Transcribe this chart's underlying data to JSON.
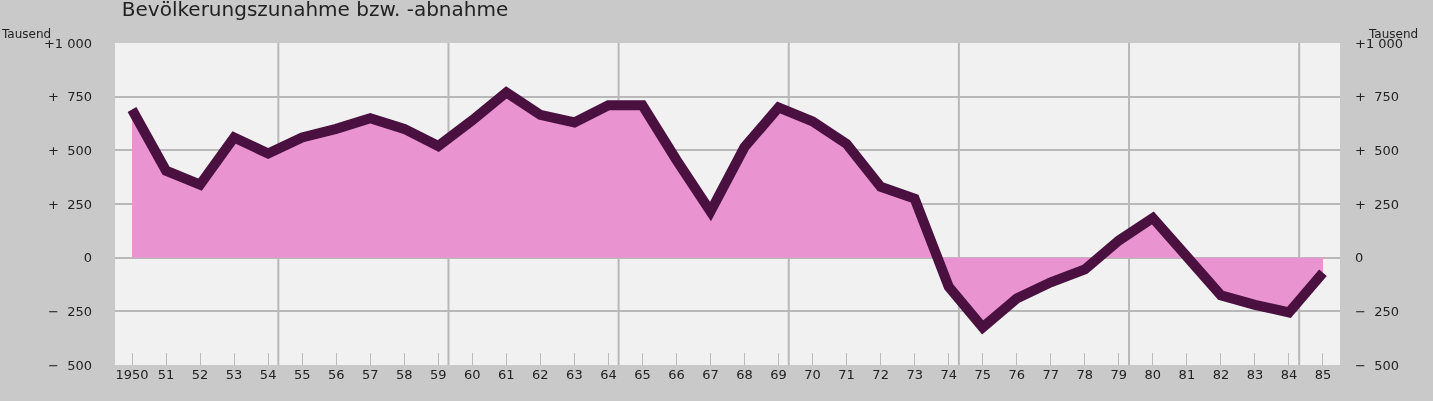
{
  "chart_data": {
    "type": "area",
    "title": "Bevölkerungszunahme bzw. -abnahme",
    "ylabel": "Tausend",
    "y2label": "Tausend",
    "categories": [
      "1950",
      "51",
      "52",
      "53",
      "54",
      "55",
      "56",
      "57",
      "58",
      "59",
      "60",
      "61",
      "62",
      "63",
      "64",
      "65",
      "66",
      "67",
      "68",
      "69",
      "70",
      "71",
      "72",
      "73",
      "74",
      "75",
      "76",
      "77",
      "78",
      "79",
      "80",
      "81",
      "82",
      "83",
      "84",
      "85"
    ],
    "series": [
      {
        "color": "#4a1040",
        "values": [
          690,
          405,
          340,
          560,
          485,
          560,
          600,
          650,
          600,
          520,
          640,
          770,
          665,
          630,
          710,
          710,
          455,
          215,
          515,
          700,
          635,
          530,
          330,
          275,
          -135,
          -325,
          -190,
          -115,
          -55,
          80,
          185,
          5,
          -175,
          -220,
          -255,
          -70
        ]
      }
    ],
    "ylim": [
      -500,
      1000
    ],
    "yticks": [
      {
        "value": 1000,
        "label": "+1 000"
      },
      {
        "value": 750,
        "label": "+  750"
      },
      {
        "value": 500,
        "label": "+  500"
      },
      {
        "value": 250,
        "label": "+  250"
      },
      {
        "value": 0,
        "label": "0"
      },
      {
        "value": -250,
        "label": "−  250"
      },
      {
        "value": -500,
        "label": "−  500"
      }
    ],
    "y2lim": [
      -500,
      1000
    ],
    "y2ticks": [
      {
        "value": 1000,
        "label": "+1 000"
      },
      {
        "value": 750,
        "label": "+  750"
      },
      {
        "value": 500,
        "label": "+  500"
      },
      {
        "value": 250,
        "label": "+  250"
      },
      {
        "value": 0,
        "label": "0"
      },
      {
        "value": -250,
        "label": "−  250"
      },
      {
        "value": -500,
        "label": "−  500"
      }
    ],
    "grid": true,
    "line_style": "solid",
    "marker": "none"
  }
}
